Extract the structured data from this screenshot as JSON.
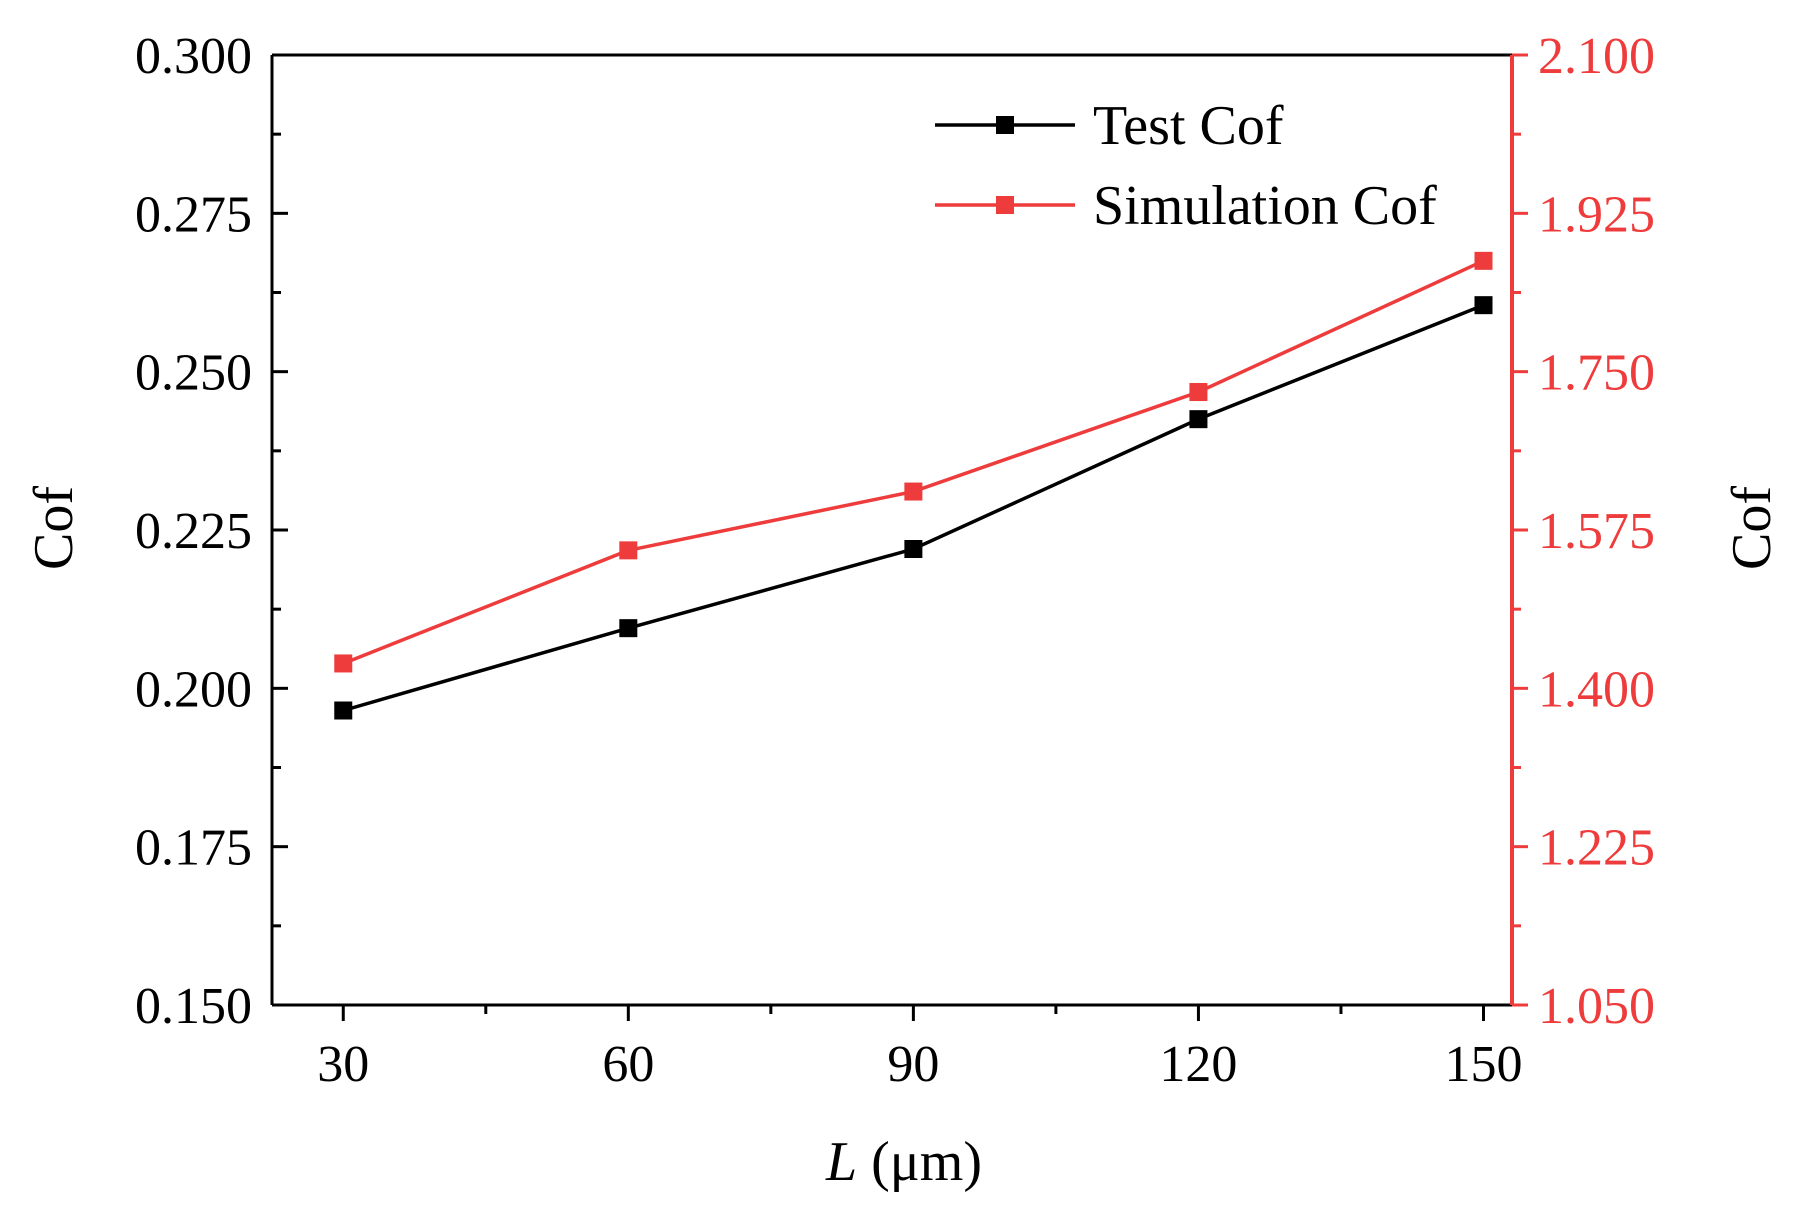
{
  "chart_data": {
    "type": "line",
    "x": [
      30,
      60,
      90,
      120,
      150
    ],
    "xlabel_italic": "L",
    "xlabel_rest": " (μm)",
    "ylabel_left": "Cof",
    "ylabel_right": "Cof",
    "xlim": [
      22.5,
      153
    ],
    "xticks": [
      "30",
      "60",
      "90",
      "120",
      "150"
    ],
    "ylim_left": [
      0.15,
      0.3
    ],
    "yticks_left": [
      "0.150",
      "0.175",
      "0.200",
      "0.225",
      "0.250",
      "0.275",
      "0.300"
    ],
    "ylim_right": [
      1.05,
      2.1
    ],
    "yticks_right": [
      "1.050",
      "1.225",
      "1.400",
      "1.575",
      "1.750",
      "1.925",
      "2.100"
    ],
    "legend_position": "top-right",
    "series": [
      {
        "name": "Test Cof",
        "axis": "left",
        "color": "#000000",
        "values": [
          0.1965,
          0.2095,
          0.222,
          0.2425,
          0.2605
        ]
      },
      {
        "name": "Simulation Cof",
        "axis": "right",
        "color": "#ee3b3b",
        "values": [
          1.4275,
          1.5525,
          1.6175,
          1.7275,
          1.8725
        ]
      }
    ]
  }
}
